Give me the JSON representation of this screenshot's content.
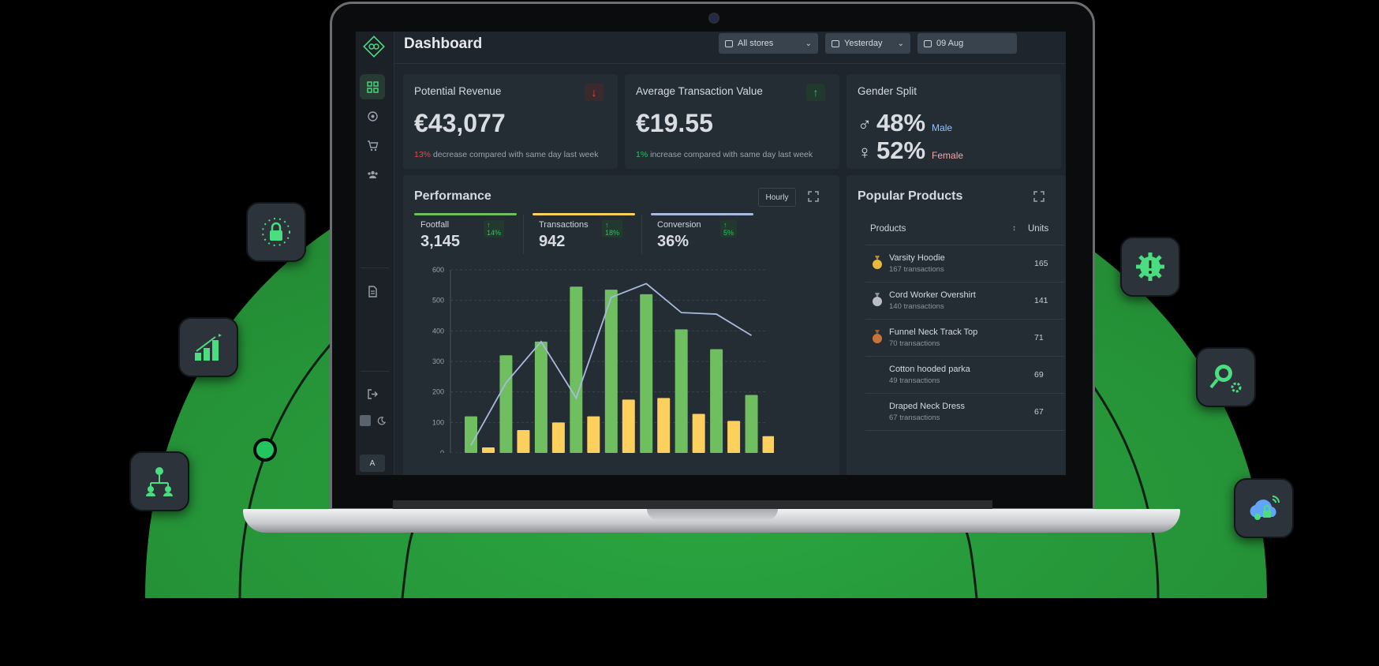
{
  "dashboard": {
    "title": "Dashboard",
    "filters": {
      "store": "All stores",
      "period": "Yesterday",
      "date": "09 Aug"
    }
  },
  "cards": {
    "revenue": {
      "title": "Potential Revenue",
      "value": "€43,077",
      "change": "13%",
      "change_text": "decrease compared with same day last week",
      "trend_icon": "arrow-down-icon",
      "color": "#ef4444"
    },
    "atv": {
      "title": "Average Transaction Value",
      "value": "€19.55",
      "change": "1%",
      "change_text": "increase compared with same day last week",
      "trend_icon": "arrow-up-icon",
      "color": "#22c55e"
    },
    "gender": {
      "title": "Gender Split",
      "male_pct": "48%",
      "male_label": "Male",
      "male_color": "#93c5fd",
      "female_pct": "52%",
      "female_label": "Female",
      "female_color": "#fca5a5"
    }
  },
  "performance": {
    "title": "Performance",
    "granularity": "Hourly",
    "metrics": [
      {
        "label": "Footfall",
        "change": "↑ 14%",
        "value": "3,145",
        "color": "#6fbf60"
      },
      {
        "label": "Transactions",
        "change": "↑ 18%",
        "value": "942",
        "color": "#fcd05c"
      },
      {
        "label": "Conversion",
        "change": "↑ 5%",
        "value": "36%",
        "color": "#a9b9de"
      }
    ]
  },
  "chart_data": {
    "type": "bar",
    "title": "",
    "xlabel": "",
    "ylabel": "",
    "ylim": [
      0,
      600
    ],
    "yticks": [
      0,
      100,
      200,
      300,
      400,
      500,
      600
    ],
    "grid": true,
    "series": [
      {
        "kind": "bar",
        "color": "#6fbf60",
        "values": [
          120,
          320,
          365,
          545,
          535,
          520,
          405,
          340,
          190
        ]
      },
      {
        "kind": "bar",
        "color": "#fcd05c",
        "values": [
          18,
          75,
          100,
          120,
          175,
          180,
          128,
          105,
          55
        ]
      },
      {
        "kind": "line",
        "color": "#a9b9de",
        "values": [
          25,
          230,
          365,
          180,
          510,
          555,
          460,
          455,
          385
        ]
      }
    ]
  },
  "popular": {
    "title": "Popular Products",
    "col_products": "Products",
    "col_units": "Units",
    "items": [
      {
        "name": "Varsity Hoodie",
        "tx": "167 transactions",
        "units": "165",
        "medal": "#e8b93c"
      },
      {
        "name": "Cord Worker Overshirt",
        "tx": "140 transactions",
        "units": "141",
        "medal": "#b9bec4"
      },
      {
        "name": "Funnel Neck Track Top",
        "tx": "70 transactions",
        "units": "71",
        "medal": "#c7743a"
      },
      {
        "name": "Cotton hooded parka",
        "tx": "49 transactions",
        "units": "69"
      },
      {
        "name": "Draped Neck Dress",
        "tx": "67 transactions",
        "units": "67"
      }
    ]
  },
  "sidebar": {
    "avatar": "A",
    "items": [
      "dashboard-icon",
      "target-icon",
      "cart-icon",
      "users-icon",
      "document-icon",
      "logout-icon"
    ]
  },
  "decor": {
    "floating_icons": [
      "lock-icon",
      "growth-chart-icon",
      "network-icon",
      "alert-gear-icon",
      "search-gear-icon",
      "cloud-security-icon"
    ],
    "accent": "#22c55e"
  }
}
